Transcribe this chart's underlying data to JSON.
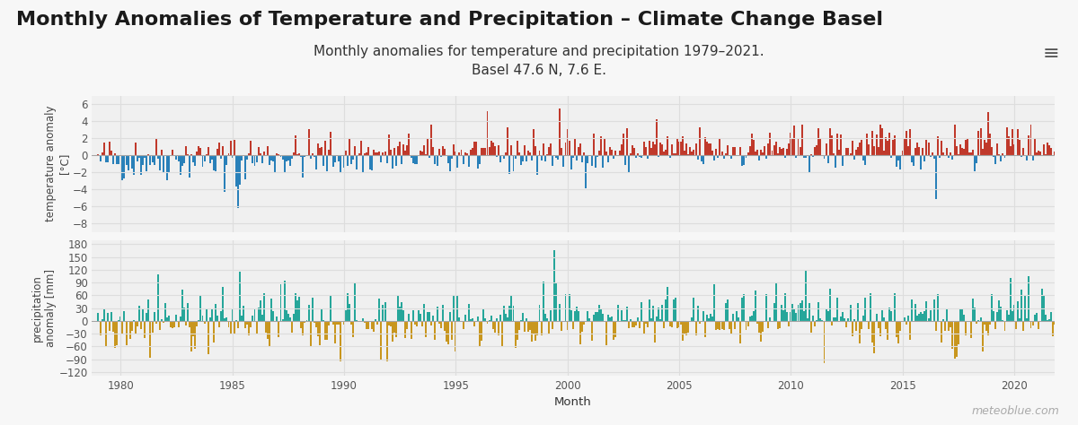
{
  "title": "Monthly Anomalies of Temperature and Precipitation – Climate Change Basel",
  "subtitle_line1": "Monthly anomalies for temperature and precipitation 1979–2021.",
  "subtitle_line2": "Basel 47.6 N, 7.6 E.",
  "xlabel": "Month",
  "ylabel_temp": "temperature anomaly\n[°C]",
  "ylabel_precip": "precipitation\nanomaly [mm]",
  "watermark": "meteoblue.com",
  "temp_ylim": [
    -9,
    7
  ],
  "temp_yticks": [
    -8,
    -6,
    -4,
    -2,
    0,
    2,
    4,
    6
  ],
  "precip_ylim": [
    -130,
    190
  ],
  "precip_yticks": [
    -120,
    -90,
    -60,
    -30,
    0,
    30,
    60,
    90,
    120,
    150,
    180
  ],
  "color_temp_pos": "#c0392b",
  "color_temp_neg": "#2980b9",
  "color_precip_pos": "#26a69a",
  "color_precip_neg": "#c8961e",
  "background_color": "#f7f7f7",
  "plot_bg_color": "#f0f0f0",
  "header_bg_color": "#ffffff",
  "grid_color": "#dddddd",
  "title_fontsize": 16,
  "subtitle_fontsize": 11,
  "axis_label_fontsize": 8.5,
  "tick_fontsize": 8.5,
  "watermark_fontsize": 9,
  "start_year": 1979,
  "end_year": 2021
}
